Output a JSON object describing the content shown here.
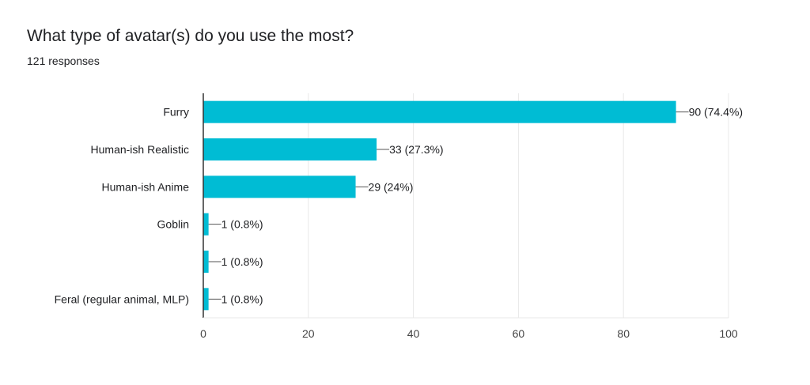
{
  "header": {
    "title": "What type of avatar(s) do you use the most?",
    "subtitle": "121 responses"
  },
  "colors": {
    "bar": "#00bcd4",
    "grid": "#e8e8e8",
    "axis": "#333333",
    "leader": "#555555"
  },
  "chart_data": {
    "type": "bar",
    "orientation": "horizontal",
    "title": "What type of avatar(s) do you use the most?",
    "subtitle": "121 responses",
    "categories": [
      "Furry",
      "Human-ish Realistic",
      "Human-ish Anime",
      "Goblin",
      "",
      "Feral (regular animal, MLP)"
    ],
    "values": [
      90,
      33,
      29,
      1,
      1,
      1
    ],
    "data_labels": [
      "90 (74.4%)",
      "33 (27.3%)",
      "29 (24%)",
      "1 (0.8%)",
      "1 (0.8%)",
      "1 (0.8%)"
    ],
    "xlim": [
      0,
      100
    ],
    "xticks": [
      0,
      20,
      40,
      60,
      80,
      100
    ],
    "grid": true,
    "legend": "none"
  }
}
